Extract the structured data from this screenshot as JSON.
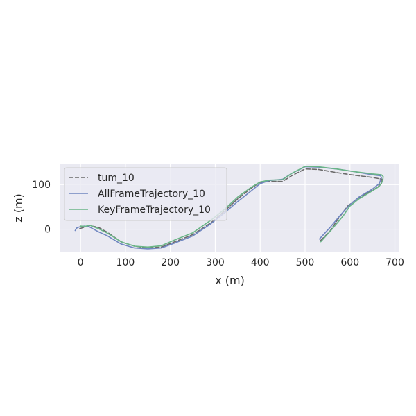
{
  "chart_data": {
    "type": "line",
    "xlabel": "x (m)",
    "ylabel": "z (m)",
    "xlim": [
      -45,
      710
    ],
    "ylim": [
      -52,
      147
    ],
    "x_ticks": [
      0,
      100,
      200,
      300,
      400,
      500,
      600,
      700
    ],
    "y_ticks": [
      0,
      100
    ],
    "x_tick_labels": [
      "0",
      "100",
      "200",
      "300",
      "400",
      "500",
      "600",
      "700"
    ],
    "y_tick_labels": [
      "0",
      "100"
    ],
    "grid": true,
    "legend_position": "top-left",
    "colors": {
      "background": "#eaeaf2",
      "grid": "#ffffff",
      "tum_10": "#6b6b6b",
      "AllFrameTrajectory_10": "#6f86c0",
      "KeyFrameTrajectory_10": "#6ab587"
    },
    "series": [
      {
        "name": "tum_10",
        "style": "dashed",
        "x": [
          -2,
          10,
          20,
          40,
          60,
          90,
          120,
          150,
          180,
          210,
          250,
          290,
          320,
          350,
          380,
          400,
          420,
          450,
          470,
          500,
          530,
          570,
          610,
          650,
          672,
          670,
          655,
          620,
          595,
          575,
          555,
          535
        ],
        "y": [
          1,
          5,
          8,
          4,
          -7,
          -28,
          -38,
          -42,
          -40,
          -28,
          -12,
          14,
          40,
          68,
          92,
          105,
          107,
          107,
          120,
          135,
          134,
          127,
          121,
          116,
          112,
          102,
          90,
          71,
          52,
          25,
          -5,
          -25
        ]
      },
      {
        "name": "AllFrameTrajectory_10",
        "style": "solid",
        "x": [
          -12,
          -8,
          0,
          10,
          20,
          40,
          60,
          90,
          120,
          150,
          180,
          210,
          250,
          290,
          320,
          350,
          380,
          400,
          420,
          450,
          470,
          500,
          530,
          570,
          610,
          650,
          668,
          670,
          665,
          650,
          620,
          600,
          580,
          555,
          532
        ],
        "y": [
          -3,
          3,
          6,
          7,
          5,
          -6,
          -15,
          -33,
          -42,
          -44,
          -42,
          -31,
          -15,
          12,
          36,
          62,
          86,
          102,
          109,
          112,
          125,
          140,
          139,
          135,
          129,
          122,
          120,
          115,
          102,
          90,
          72,
          55,
          33,
          3,
          -22
        ]
      },
      {
        "name": "KeyFrameTrajectory_10",
        "style": "solid",
        "x": [
          0,
          10,
          20,
          40,
          60,
          90,
          120,
          150,
          180,
          210,
          250,
          290,
          320,
          350,
          380,
          400,
          420,
          450,
          470,
          500,
          530,
          570,
          610,
          650,
          670,
          674,
          673,
          665,
          650,
          620,
          600,
          585,
          560,
          535
        ],
        "y": [
          7,
          6,
          9,
          1,
          -9,
          -28,
          -38,
          -40,
          -37,
          -24,
          -8,
          20,
          44,
          72,
          94,
          106,
          110,
          111,
          125,
          141,
          140,
          135,
          129,
          124,
          122,
          118,
          108,
          96,
          86,
          68,
          52,
          30,
          0,
          -28
        ]
      }
    ]
  }
}
